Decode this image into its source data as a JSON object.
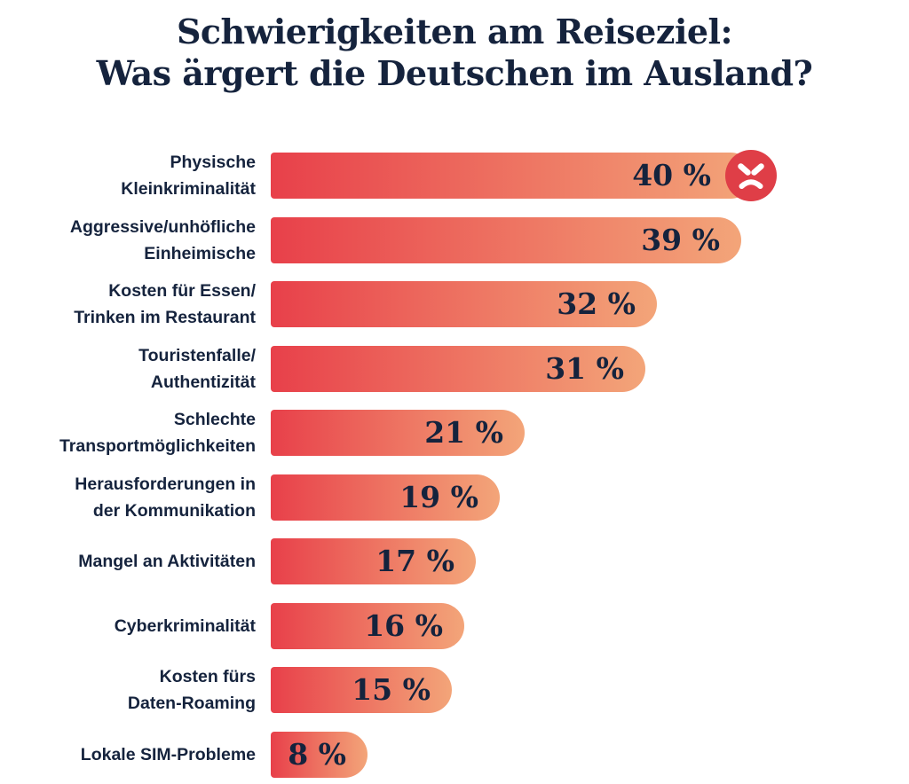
{
  "title": {
    "line1": "Schwierigkeiten am Reiseziel:",
    "line2": "Was ärgert die Deutschen im Ausland?"
  },
  "colors": {
    "text_navy": "#15233D",
    "bar_gradient_start": "#E8404A",
    "bar_gradient_end": "#F3A579",
    "emoji_circle_red": "#DF3E47",
    "background": "#FFFFFF"
  },
  "icons": {
    "first_bar_icon": "angry-face-icon"
  },
  "chart_data": {
    "type": "bar",
    "orientation": "horizontal",
    "title": "Schwierigkeiten am Reiseziel: Was ärgert die Deutschen im Ausland?",
    "unit": "%",
    "xlim": [
      0,
      45
    ],
    "grid": false,
    "legend": false,
    "categories": [
      "Physische\nKleinkriminalität",
      "Aggressive/unhöfliche\nEinheimische",
      "Kosten für Essen/\nTrinken im Restaurant",
      "Touristenfalle/\nAuthentizität",
      "Schlechte\nTransportmöglichkeiten",
      "Herausforderungen in\nder Kommunikation",
      "Mangel an Aktivitäten",
      "Cyberkriminalität",
      "Kosten fürs\nDaten-Roaming",
      "Lokale SIM-Probleme"
    ],
    "values": [
      40,
      39,
      32,
      31,
      21,
      19,
      17,
      16,
      15,
      8
    ],
    "value_labels": [
      "40 %",
      "39 %",
      "32 %",
      "31 %",
      "21 %",
      "19 %",
      "17 %",
      "16 %",
      "15 %",
      "8 %"
    ],
    "emoji_on_first_bar": true
  }
}
